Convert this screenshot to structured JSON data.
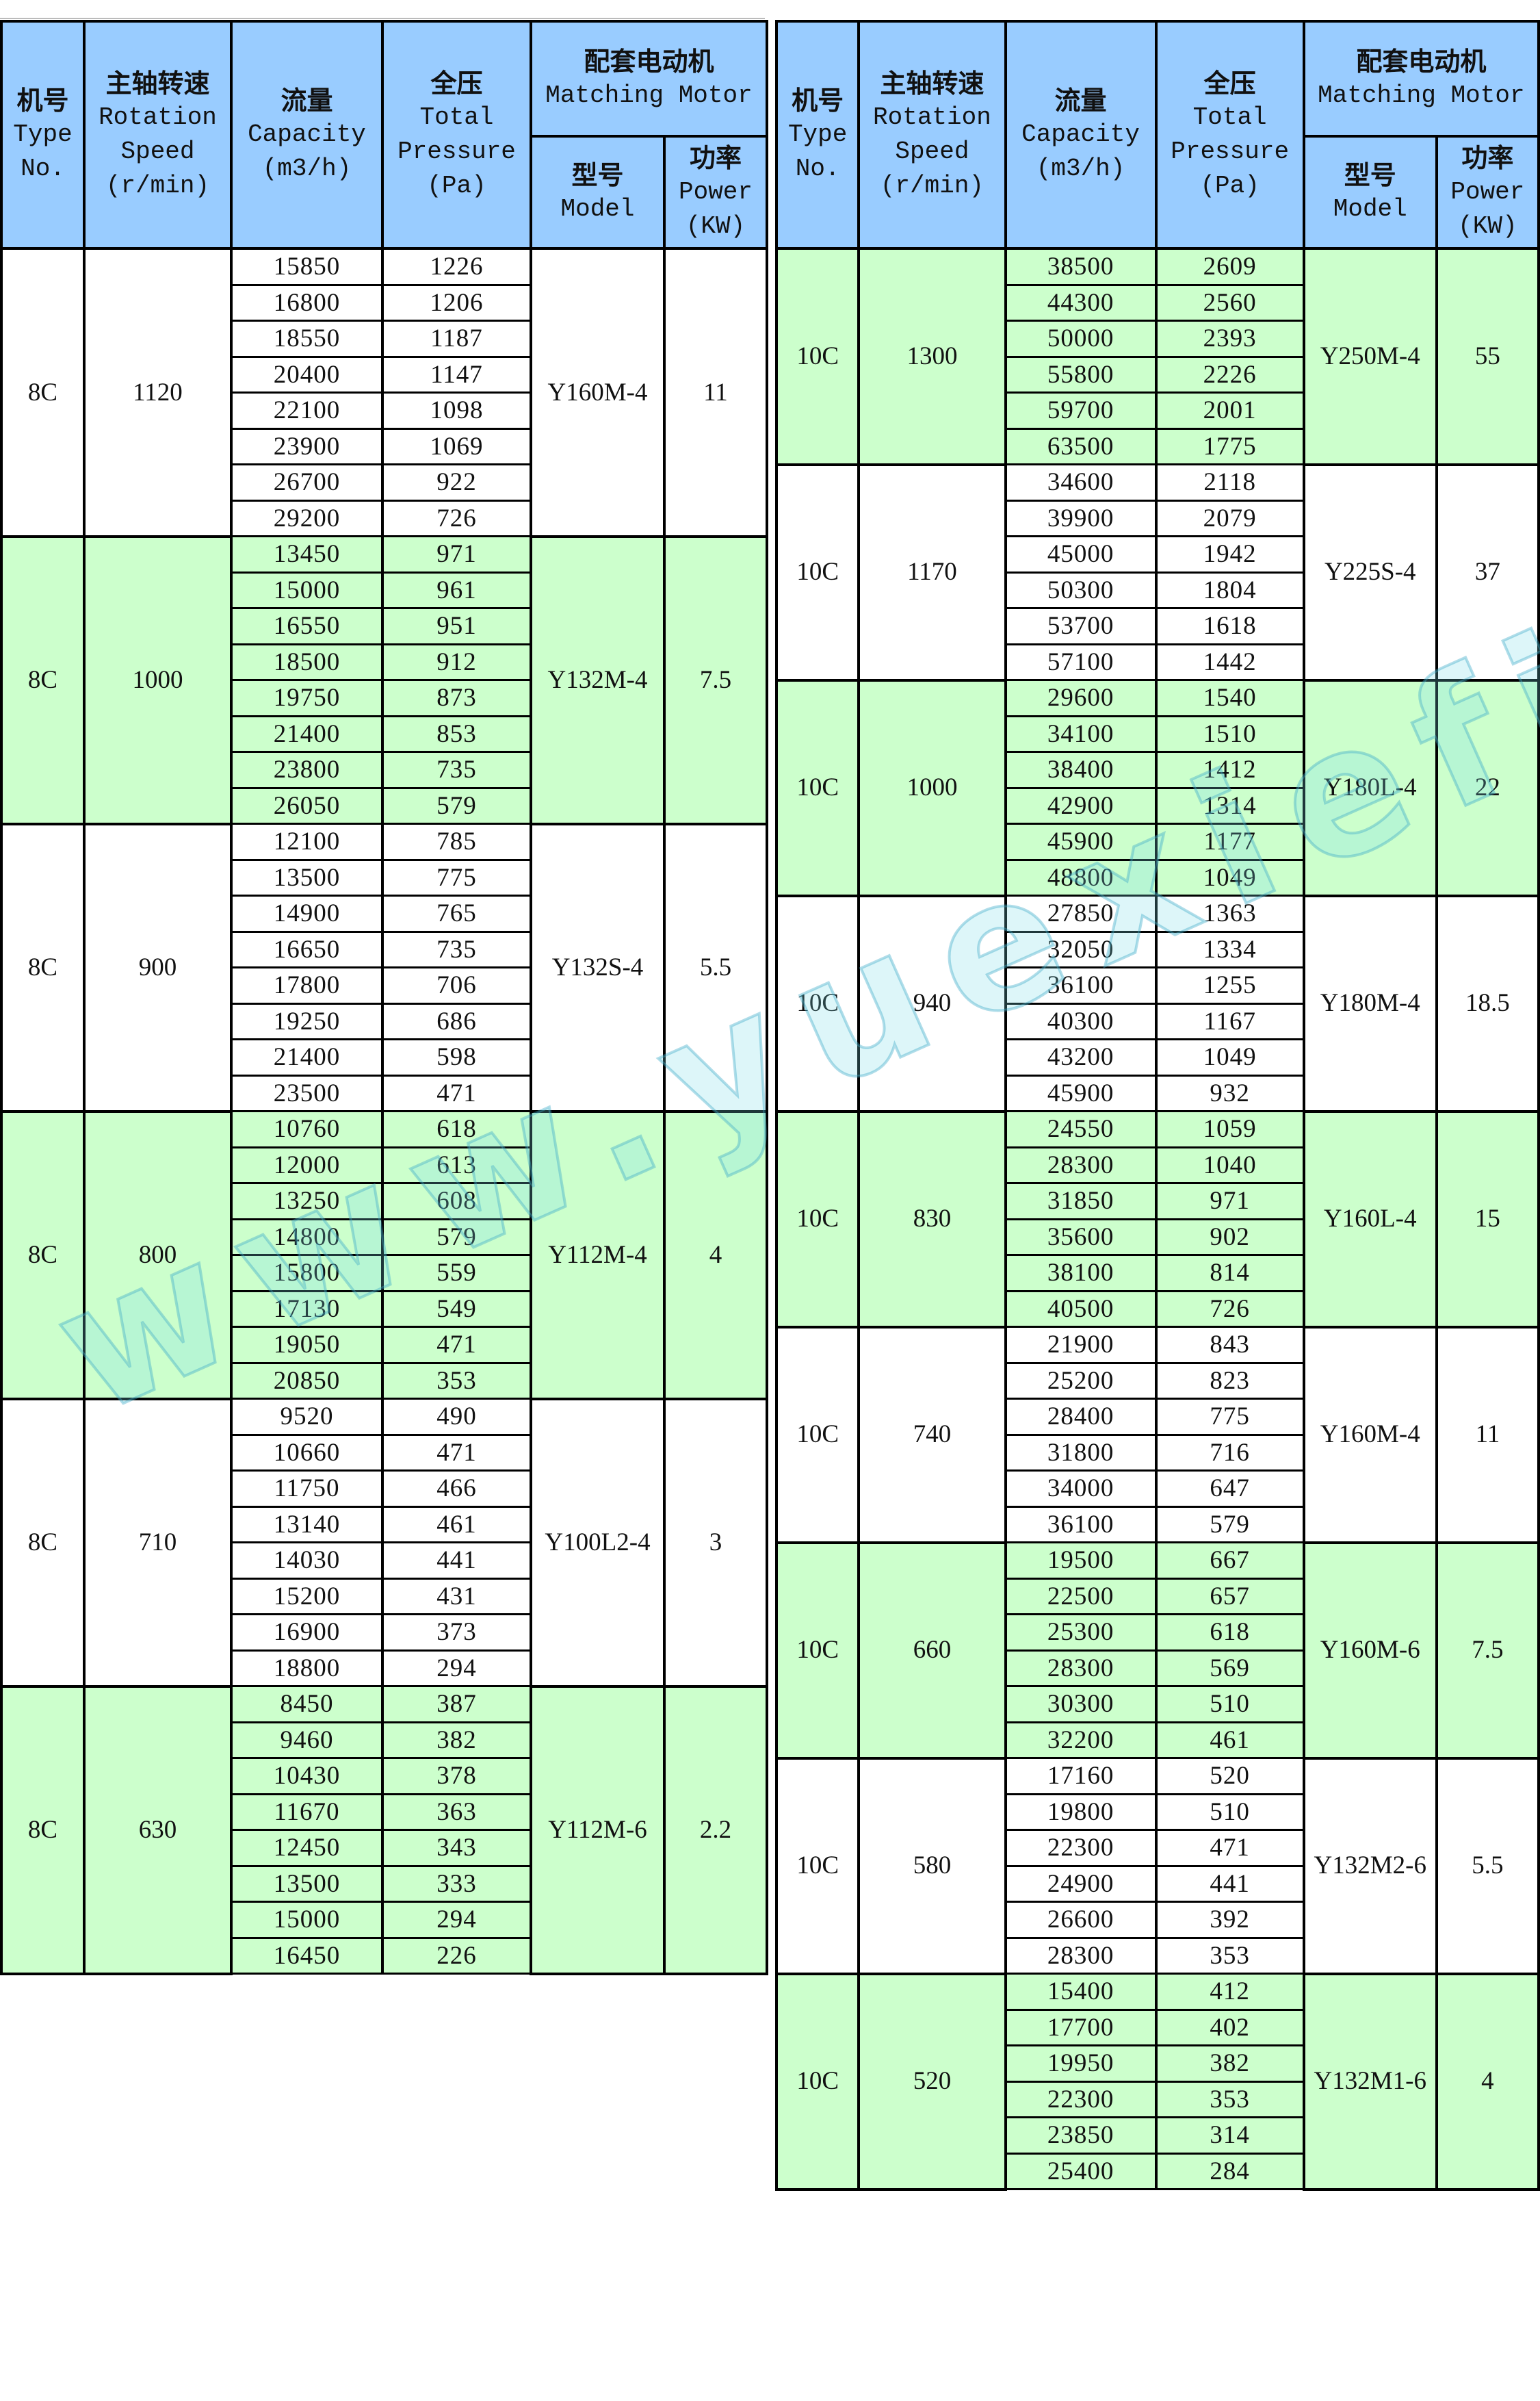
{
  "header": {
    "type_zh": "机号",
    "type_en1": "Type",
    "type_en2": "No.",
    "speed_zh": "主轴转速",
    "speed_en1": "Rotation",
    "speed_en2": "Speed",
    "speed_unit": "(r/min)",
    "capacity_zh": "流量",
    "capacity_en": "Capacity",
    "capacity_unit": "(m3/h)",
    "pressure_zh": "全压",
    "pressure_en1": "Total",
    "pressure_en2": "Pressure",
    "pressure_unit": "(Pa)",
    "motor_zh": "配套电动机",
    "motor_en": "Matching Motor",
    "model_zh": "型号",
    "model_en": "Model",
    "power_zh": "功率",
    "power_en": "Power",
    "power_unit": "(KW)"
  },
  "colors": {
    "header": "#99ccff",
    "green_band": "#ccffcc",
    "white_band": "#ffffff"
  },
  "watermark": "www.yuexiefj.com",
  "left_table": [
    {
      "type": "8C",
      "speed": "1120",
      "model": "Y160M-4",
      "power": "11",
      "band": "white",
      "rows": [
        [
          "15850",
          "1226"
        ],
        [
          "16800",
          "1206"
        ],
        [
          "18550",
          "1187"
        ],
        [
          "20400",
          "1147"
        ],
        [
          "22100",
          "1098"
        ],
        [
          "23900",
          "1069"
        ],
        [
          "26700",
          "922"
        ],
        [
          "29200",
          "726"
        ]
      ]
    },
    {
      "type": "8C",
      "speed": "1000",
      "model": "Y132M-4",
      "power": "7.5",
      "band": "green",
      "rows": [
        [
          "13450",
          "971"
        ],
        [
          "15000",
          "961"
        ],
        [
          "16550",
          "951"
        ],
        [
          "18500",
          "912"
        ],
        [
          "19750",
          "873"
        ],
        [
          "21400",
          "853"
        ],
        [
          "23800",
          "735"
        ],
        [
          "26050",
          "579"
        ]
      ]
    },
    {
      "type": "8C",
      "speed": "900",
      "model": "Y132S-4",
      "power": "5.5",
      "band": "white",
      "rows": [
        [
          "12100",
          "785"
        ],
        [
          "13500",
          "775"
        ],
        [
          "14900",
          "765"
        ],
        [
          "16650",
          "735"
        ],
        [
          "17800",
          "706"
        ],
        [
          "19250",
          "686"
        ],
        [
          "21400",
          "598"
        ],
        [
          "23500",
          "471"
        ]
      ]
    },
    {
      "type": "8C",
      "speed": "800",
      "model": "Y112M-4",
      "power": "4",
      "band": "green",
      "rows": [
        [
          "10760",
          "618"
        ],
        [
          "12000",
          "613"
        ],
        [
          "13250",
          "608"
        ],
        [
          "14800",
          "579"
        ],
        [
          "15800",
          "559"
        ],
        [
          "17130",
          "549"
        ],
        [
          "19050",
          "471"
        ],
        [
          "20850",
          "353"
        ]
      ]
    },
    {
      "type": "8C",
      "speed": "710",
      "model": "Y100L2-4",
      "power": "3",
      "band": "white",
      "rows": [
        [
          "9520",
          "490"
        ],
        [
          "10660",
          "471"
        ],
        [
          "11750",
          "466"
        ],
        [
          "13140",
          "461"
        ],
        [
          "14030",
          "441"
        ],
        [
          "15200",
          "431"
        ],
        [
          "16900",
          "373"
        ],
        [
          "18800",
          "294"
        ]
      ]
    },
    {
      "type": "8C",
      "speed": "630",
      "model": "Y112M-6",
      "power": "2.2",
      "band": "green",
      "rows": [
        [
          "8450",
          "387"
        ],
        [
          "9460",
          "382"
        ],
        [
          "10430",
          "378"
        ],
        [
          "11670",
          "363"
        ],
        [
          "12450",
          "343"
        ],
        [
          "13500",
          "333"
        ],
        [
          "15000",
          "294"
        ],
        [
          "16450",
          "226"
        ]
      ]
    }
  ],
  "right_table": [
    {
      "type": "10C",
      "speed": "1300",
      "model": "Y250M-4",
      "power": "55",
      "band": "green",
      "rows": [
        [
          "38500",
          "2609"
        ],
        [
          "44300",
          "2560"
        ],
        [
          "50000",
          "2393"
        ],
        [
          "55800",
          "2226"
        ],
        [
          "59700",
          "2001"
        ],
        [
          "63500",
          "1775"
        ]
      ]
    },
    {
      "type": "10C",
      "speed": "1170",
      "model": "Y225S-4",
      "power": "37",
      "band": "white",
      "rows": [
        [
          "34600",
          "2118"
        ],
        [
          "39900",
          "2079"
        ],
        [
          "45000",
          "1942"
        ],
        [
          "50300",
          "1804"
        ],
        [
          "53700",
          "1618"
        ],
        [
          "57100",
          "1442"
        ]
      ]
    },
    {
      "type": "10C",
      "speed": "1000",
      "model": "Y180L-4",
      "power": "22",
      "band": "green",
      "rows": [
        [
          "29600",
          "1540"
        ],
        [
          "34100",
          "1510"
        ],
        [
          "38400",
          "1412"
        ],
        [
          "42900",
          "1314"
        ],
        [
          "45900",
          "1177"
        ],
        [
          "48800",
          "1049"
        ]
      ]
    },
    {
      "type": "10C",
      "speed": "940",
      "model": "Y180M-4",
      "power": "18.5",
      "band": "white",
      "rows": [
        [
          "27850",
          "1363"
        ],
        [
          "32050",
          "1334"
        ],
        [
          "36100",
          "1255"
        ],
        [
          "40300",
          "1167"
        ],
        [
          "43200",
          "1049"
        ],
        [
          "45900",
          "932"
        ]
      ]
    },
    {
      "type": "10C",
      "speed": "830",
      "model": "Y160L-4",
      "power": "15",
      "band": "green",
      "rows": [
        [
          "24550",
          "1059"
        ],
        [
          "28300",
          "1040"
        ],
        [
          "31850",
          "971"
        ],
        [
          "35600",
          "902"
        ],
        [
          "38100",
          "814"
        ],
        [
          "40500",
          "726"
        ]
      ]
    },
    {
      "type": "10C",
      "speed": "740",
      "model": "Y160M-4",
      "power": "11",
      "band": "white",
      "rows": [
        [
          "21900",
          "843"
        ],
        [
          "25200",
          "823"
        ],
        [
          "28400",
          "775"
        ],
        [
          "31800",
          "716"
        ],
        [
          "34000",
          "647"
        ],
        [
          "36100",
          "579"
        ]
      ]
    },
    {
      "type": "10C",
      "speed": "660",
      "model": "Y160M-6",
      "power": "7.5",
      "band": "green",
      "rows": [
        [
          "19500",
          "667"
        ],
        [
          "22500",
          "657"
        ],
        [
          "25300",
          "618"
        ],
        [
          "28300",
          "569"
        ],
        [
          "30300",
          "510"
        ],
        [
          "32200",
          "461"
        ]
      ]
    },
    {
      "type": "10C",
      "speed": "580",
      "model": "Y132M2-6",
      "power": "5.5",
      "band": "white",
      "rows": [
        [
          "17160",
          "520"
        ],
        [
          "19800",
          "510"
        ],
        [
          "22300",
          "471"
        ],
        [
          "24900",
          "441"
        ],
        [
          "26600",
          "392"
        ],
        [
          "28300",
          "353"
        ]
      ]
    },
    {
      "type": "10C",
      "speed": "520",
      "model": "Y132M1-6",
      "power": "4",
      "band": "green",
      "rows": [
        [
          "15400",
          "412"
        ],
        [
          "17700",
          "402"
        ],
        [
          "19950",
          "382"
        ],
        [
          "22300",
          "353"
        ],
        [
          "23850",
          "314"
        ],
        [
          "25400",
          "284"
        ]
      ]
    }
  ]
}
